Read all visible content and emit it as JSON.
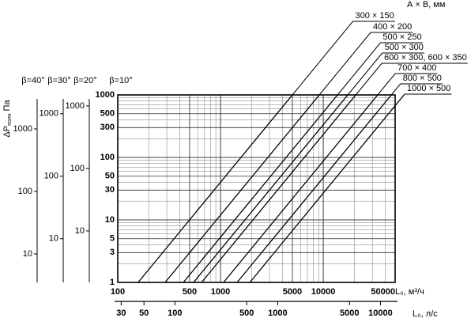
{
  "chart_data": {
    "type": "line",
    "legend_title": "А × В, мм",
    "xlabel": "L₀, м³/ч",
    "x2label": "L₀, л/с",
    "ylabel": {
      "main": "ΔP",
      "sub": "полн",
      "unit": "Па"
    },
    "xlog": true,
    "ylog": true,
    "grid": true,
    "minor_grid": true,
    "xlim": [
      100,
      50000
    ],
    "xticks": [
      100,
      500,
      1000,
      5000,
      10000,
      50000
    ],
    "x2lim": [
      27.78,
      13889
    ],
    "x2ticks": [
      30,
      50,
      100,
      500,
      1000,
      5000,
      10000
    ],
    "ylim": [
      1,
      1000
    ],
    "yticks": [
      1,
      3,
      5,
      10,
      30,
      50,
      100,
      300,
      500,
      1000
    ],
    "main_axis_label": "β=10°",
    "left_axes": [
      {
        "label": "β=40°",
        "ylim": [
          3.5,
          3500
        ],
        "yticks": [
          10,
          100,
          1000
        ]
      },
      {
        "label": "β=30°",
        "ylim": [
          2,
          2000
        ],
        "yticks": [
          10,
          100,
          1000
        ]
      },
      {
        "label": "β=20°",
        "ylim": [
          1.5,
          1500
        ],
        "yticks": [
          10,
          100,
          1000
        ]
      }
    ],
    "color": "#000000",
    "series": [
      {
        "name": "300 × 150",
        "x": [
          158,
          5000
        ],
        "values": [
          1,
          1000
        ]
      },
      {
        "name": "400 × 200",
        "x": [
          289,
          9140
        ],
        "values": [
          1,
          1000
        ]
      },
      {
        "name": "500 × 250",
        "x": [
          435,
          13750
        ],
        "values": [
          1,
          1000
        ]
      },
      {
        "name": "500 × 300",
        "x": [
          547,
          17300
        ],
        "values": [
          1,
          1000
        ]
      },
      {
        "name": "600 × 300, 600 × 350",
        "x": [
          654,
          20700
        ],
        "values": [
          1,
          1000
        ]
      },
      {
        "name": "700 × 400",
        "x": [
          1070,
          33800
        ],
        "values": [
          1,
          1000
        ]
      },
      {
        "name": "800 × 500",
        "x": [
          1450,
          45900
        ],
        "values": [
          1,
          1000
        ]
      },
      {
        "name": "1000 × 500",
        "x": [
          1930,
          61000
        ],
        "values": [
          1,
          1000
        ]
      }
    ]
  }
}
